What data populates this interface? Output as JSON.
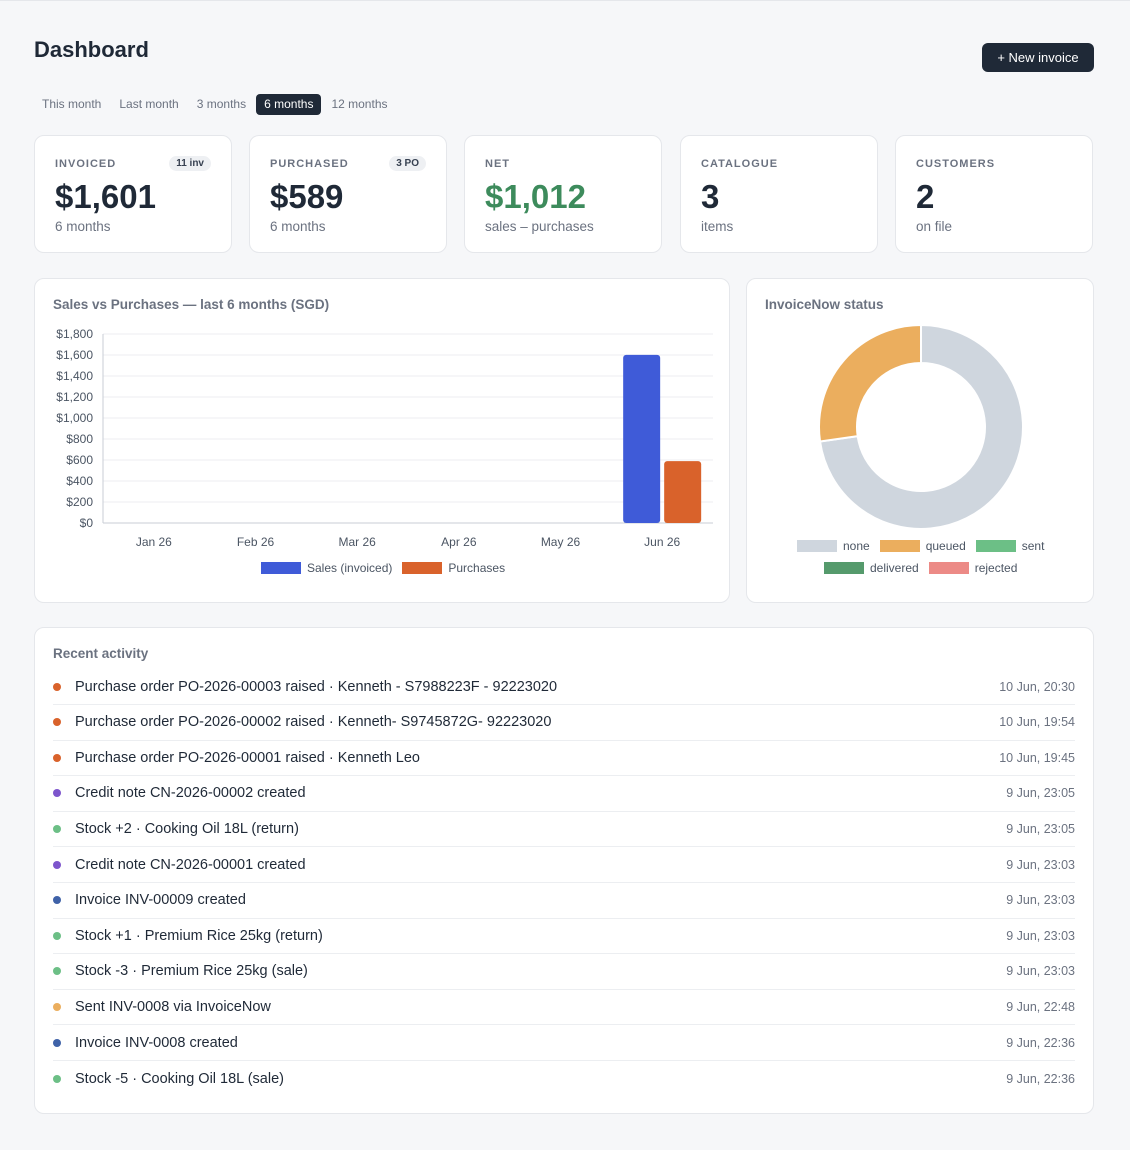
{
  "header": {
    "title": "Dashboard",
    "new_invoice_label": "+ New invoice"
  },
  "range_tabs": [
    {
      "label": "This month",
      "active": false
    },
    {
      "label": "Last month",
      "active": false
    },
    {
      "label": "3 months",
      "active": false
    },
    {
      "label": "6 months",
      "active": true
    },
    {
      "label": "12 months",
      "active": false
    }
  ],
  "kpis": [
    {
      "label": "INVOICED",
      "badge": "11 inv",
      "value": "$1,601",
      "sub": "6 months",
      "accent": ""
    },
    {
      "label": "PURCHASED",
      "badge": "3 PO",
      "value": "$589",
      "sub": "6 months",
      "accent": ""
    },
    {
      "label": "NET",
      "badge": "",
      "value": "$1,012",
      "sub": "sales – purchases",
      "accent": "#3d8b5c"
    },
    {
      "label": "CATALOGUE",
      "badge": "",
      "value": "3",
      "sub": "items",
      "accent": ""
    },
    {
      "label": "CUSTOMERS",
      "badge": "",
      "value": "2",
      "sub": "on file",
      "accent": ""
    }
  ],
  "chart_data": [
    {
      "type": "bar",
      "title": "Sales vs Purchases — last 6 months (SGD)",
      "categories": [
        "Jan 26",
        "Feb 26",
        "Mar 26",
        "Apr 26",
        "May 26",
        "Jun 26"
      ],
      "series": [
        {
          "name": "Sales (invoiced)",
          "values": [
            0,
            0,
            0,
            0,
            0,
            1601
          ],
          "color": "#3f5bd8"
        },
        {
          "name": "Purchases",
          "values": [
            0,
            0,
            0,
            0,
            0,
            589
          ],
          "color": "#d9622b"
        }
      ],
      "ylim": [
        0,
        1800
      ],
      "yticks": [
        "$0",
        "$200",
        "$400",
        "$600",
        "$800",
        "$1,000",
        "$1,200",
        "$1,400",
        "$1,600",
        "$1,800"
      ],
      "grid": true,
      "legend": "bottom"
    },
    {
      "type": "pie",
      "title": "InvoiceNow status",
      "labels": [
        "none",
        "queued",
        "sent",
        "delivered",
        "rejected"
      ],
      "values": [
        8,
        3,
        0,
        0,
        0
      ],
      "colors": [
        "#cfd6de",
        "#ebae5e",
        "#6cbf86",
        "#559a6c",
        "#ec8a86"
      ],
      "legend": "bottom"
    }
  ],
  "activity": {
    "title": "Recent activity",
    "items": [
      {
        "text": "Purchase order PO-2026-00003 raised · Kenneth - S7988223F - 92223020",
        "time": "10 Jun, 20:30",
        "color": "#d9622b"
      },
      {
        "text": "Purchase order PO-2026-00002 raised · Kenneth- S9745872G- 92223020",
        "time": "10 Jun, 19:54",
        "color": "#d9622b"
      },
      {
        "text": "Purchase order PO-2026-00001 raised · Kenneth Leo",
        "time": "10 Jun, 19:45",
        "color": "#d9622b"
      },
      {
        "text": "Credit note CN-2026-00002 created",
        "time": "9 Jun, 23:05",
        "color": "#7d55cc"
      },
      {
        "text": "Stock +2 · Cooking Oil 18L (return)",
        "time": "9 Jun, 23:05",
        "color": "#6cbf86"
      },
      {
        "text": "Credit note CN-2026-00001 created",
        "time": "9 Jun, 23:03",
        "color": "#7d55cc"
      },
      {
        "text": "Invoice INV-00009 created",
        "time": "9 Jun, 23:03",
        "color": "#3f62a8"
      },
      {
        "text": "Stock +1 · Premium Rice 25kg (return)",
        "time": "9 Jun, 23:03",
        "color": "#6cbf86"
      },
      {
        "text": "Stock -3 · Premium Rice 25kg (sale)",
        "time": "9 Jun, 23:03",
        "color": "#6cbf86"
      },
      {
        "text": "Sent INV-0008 via InvoiceNow",
        "time": "9 Jun, 22:48",
        "color": "#ebae5e"
      },
      {
        "text": "Invoice INV-0008 created",
        "time": "9 Jun, 22:36",
        "color": "#3f62a8"
      },
      {
        "text": "Stock -5 · Cooking Oil 18L (sale)",
        "time": "9 Jun, 22:36",
        "color": "#6cbf86"
      }
    ]
  }
}
